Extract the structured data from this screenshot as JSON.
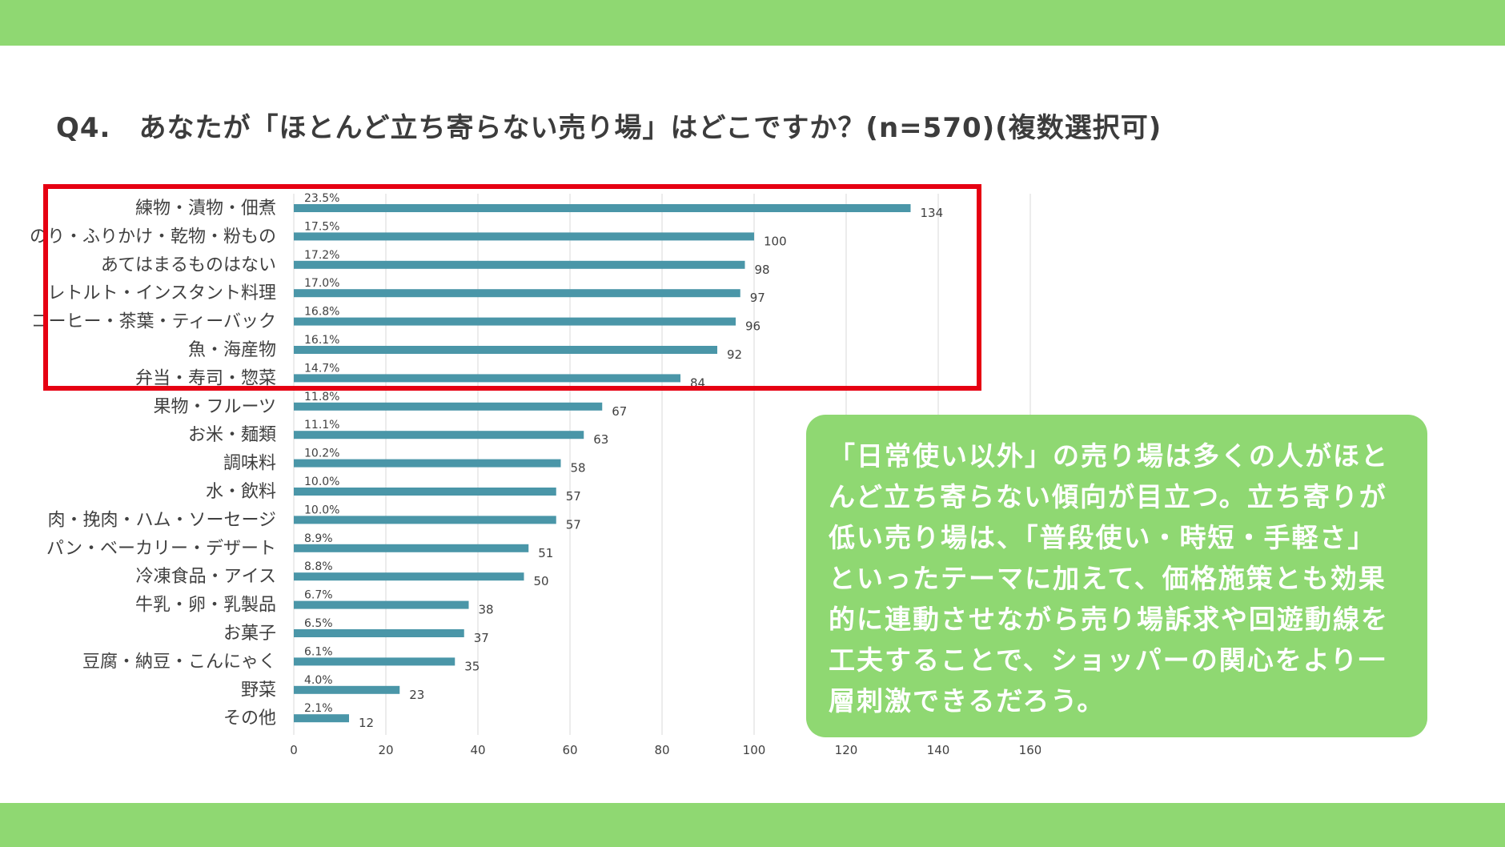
{
  "title": "Q4.　あなたが「ほとんど立ち寄らない売り場」はどこですか？(n=570)(複数選択可)",
  "callout": "「日常使い以外」の売り場は多くの人がほとんど立ち寄らない傾向が目立つ。立ち寄りが低い売り場は、「普段使い・時短・手軽さ」といったテーマに加えて、価格施策とも効果的に連動させながら売り場訴求や回遊動線を工夫することで、ショッパーの関心をより一層刺激できるだろう。",
  "colors": {
    "band": "#8fd872",
    "bar": "#4a96a8",
    "highlight": "#e60012",
    "grid": "#d9d9d9"
  },
  "chart_data": {
    "type": "bar",
    "orientation": "horizontal",
    "categories": [
      "練物・漬物・佃煮",
      "のり・ふりかけ・乾物・粉もの",
      "あてはまるものはない",
      "レトルト・インスタント料理",
      "コーヒー・茶葉・ティーバック",
      "魚・海産物",
      "弁当・寿司・惣菜",
      "果物・フルーツ",
      "お米・麺類",
      "調味料",
      "水・飲料",
      "肉・挽肉・ハム・ソーセージ",
      "パン・ベーカリー・デザート",
      "冷凍食品・アイス",
      "牛乳・卵・乳製品",
      "お菓子",
      "豆腐・納豆・こんにゃく",
      "野菜",
      "その他"
    ],
    "values": [
      134,
      100,
      98,
      97,
      96,
      92,
      84,
      67,
      63,
      58,
      57,
      57,
      51,
      50,
      38,
      37,
      35,
      23,
      12
    ],
    "percent_labels": [
      "23.5%",
      "17.5%",
      "17.2%",
      "17.0%",
      "16.8%",
      "16.1%",
      "14.7%",
      "11.8%",
      "11.1%",
      "10.2%",
      "10.0%",
      "10.0%",
      "8.9%",
      "8.8%",
      "6.7%",
      "6.5%",
      "6.1%",
      "4.0%",
      "2.1%"
    ],
    "xlim": [
      0,
      160
    ],
    "xticks": [
      0,
      20,
      40,
      60,
      80,
      100,
      120,
      140,
      160
    ],
    "grid": true,
    "highlighted_count": 7
  }
}
